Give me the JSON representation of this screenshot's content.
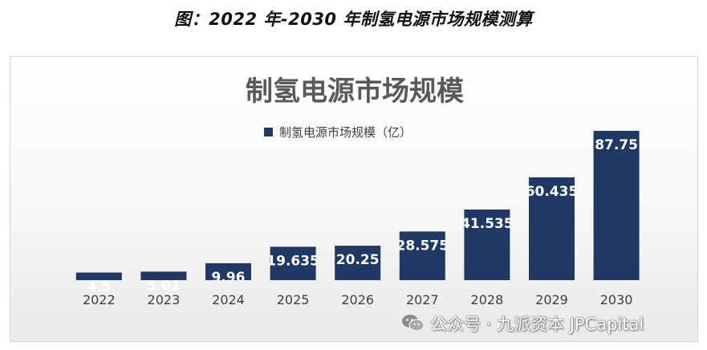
{
  "caption": "图：2022 年-2030 年制氢电源市场规模测算",
  "watermark": {
    "text": "公众号 · 九派资本 JPCapital",
    "icon": "wechat-icon"
  },
  "colors": {
    "bar": "#1f3864",
    "title": "#595959",
    "axis_text": "#404040",
    "data_label": "#ffffff"
  },
  "chart_data": {
    "type": "bar",
    "title": "制氢电源市场规模",
    "legend": {
      "position": "top-center",
      "entries": [
        "制氢电源市场规模（亿）"
      ]
    },
    "categories": [
      "2022",
      "2023",
      "2024",
      "2025",
      "2026",
      "2027",
      "2028",
      "2029",
      "2030"
    ],
    "series": [
      {
        "name": "制氢电源市场规模（亿）",
        "values": [
          4.5,
          5.01,
          9.96,
          19.635,
          20.25,
          28.575,
          41.535,
          60.435,
          87.75
        ],
        "labels": [
          "4.5",
          "5.01",
          "9.96",
          "19.635",
          "20.25",
          "28.575",
          "41.535",
          "60.435",
          "87.75"
        ]
      }
    ],
    "ylim": [
      0,
      100
    ],
    "grid": false,
    "y_axis_visible": false
  }
}
